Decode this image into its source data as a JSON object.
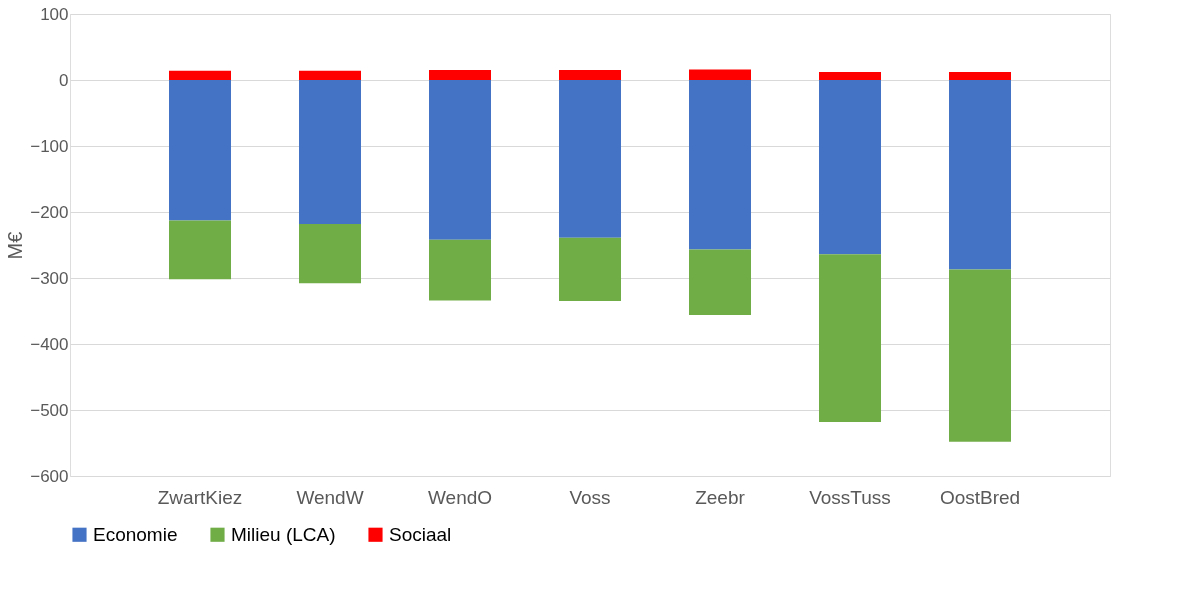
{
  "chart_data": {
    "type": "bar",
    "stacked": true,
    "ylabel": "M€",
    "categories": [
      "ZwartKiez",
      "WendW",
      "WendO",
      "Voss",
      "Zeebr",
      "VossTuss",
      "OostBred"
    ],
    "series": [
      {
        "name": "Economie",
        "color": "#4472c4",
        "values": [
          -213,
          -218,
          -242,
          -239,
          -257,
          -264,
          -287
        ]
      },
      {
        "name": "Milieu (LCA)",
        "color": "#70ad47",
        "values": [
          -89,
          -90,
          -92,
          -96,
          -99,
          -254,
          -261
        ]
      },
      {
        "name": "Sociaal",
        "color": "#ff0000",
        "values": [
          14,
          14,
          15,
          15,
          16,
          12,
          12
        ]
      }
    ],
    "ylim": [
      -600,
      100
    ],
    "yticks": [
      -600,
      -500,
      -400,
      -300,
      -200,
      -100,
      0,
      100
    ],
    "grid": "y",
    "legend": "bottom"
  }
}
